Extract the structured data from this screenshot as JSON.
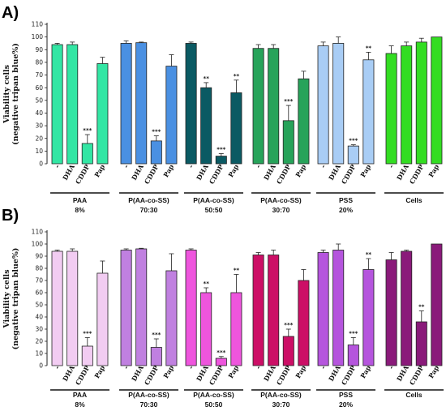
{
  "chart_data": [
    {
      "type": "bar",
      "panel_label": "A)",
      "ylabel": [
        "Viability cells",
        "(negative tripan blue%)"
      ],
      "ylim": [
        0,
        110
      ],
      "yticks": [
        "0",
        "10",
        "20",
        "30",
        "40",
        "50",
        "60",
        "70",
        "80",
        "90",
        "100",
        "110"
      ],
      "bar_labels": [
        "-",
        "DHA",
        "CDDP",
        "Pap"
      ],
      "groups": [
        {
          "label": [
            "PAA",
            "8%"
          ],
          "color": "#33e6a4",
          "values": [
            94,
            94,
            16,
            79
          ],
          "errors": [
            1,
            2,
            7,
            5
          ],
          "sig": [
            "",
            "",
            "***",
            ""
          ]
        },
        {
          "label": [
            "P(AA-co-SS)",
            "70:30"
          ],
          "color": "#4a90e2",
          "values": [
            95,
            95.5,
            18,
            77
          ],
          "errors": [
            2,
            0.5,
            4,
            9
          ],
          "sig": [
            "",
            "",
            "***",
            ""
          ]
        },
        {
          "label": [
            "P(AA-co-SS)",
            "50:50"
          ],
          "color": "#0b5a63",
          "values": [
            95,
            60,
            6,
            56
          ],
          "errors": [
            1,
            4,
            2,
            10
          ],
          "sig": [
            "",
            "**",
            "***",
            "**"
          ]
        },
        {
          "label": [
            "P(AA-co-SS)",
            "30:70"
          ],
          "color": "#27a35a",
          "values": [
            91,
            91,
            34,
            67
          ],
          "errors": [
            3,
            3,
            12,
            6
          ],
          "sig": [
            "",
            "",
            "***",
            ""
          ]
        },
        {
          "label": [
            "PSS",
            "20%"
          ],
          "color": "#a9cdf5",
          "values": [
            93,
            95,
            14,
            82
          ],
          "errors": [
            3,
            5,
            1,
            6
          ],
          "sig": [
            "",
            "",
            "***",
            "**"
          ]
        },
        {
          "label": [
            "Cells",
            ""
          ],
          "color": "#33dd22",
          "values": [
            87,
            93,
            96,
            100
          ],
          "errors": [
            6,
            3,
            3,
            0
          ],
          "sig": [
            "",
            "",
            "",
            ""
          ]
        }
      ]
    },
    {
      "type": "bar",
      "panel_label": "B)",
      "ylabel": [
        "Viability cells",
        "(negative tripan blue%)"
      ],
      "ylim": [
        0,
        110
      ],
      "yticks": [
        "0",
        "10",
        "20",
        "30",
        "40",
        "50",
        "60",
        "70",
        "80",
        "90",
        "100",
        "110"
      ],
      "bar_labels": [
        "-",
        "DHA",
        "CDDP",
        "Pap"
      ],
      "groups": [
        {
          "label": [
            "PAA",
            "8%"
          ],
          "color": "#f2ccf2",
          "values": [
            94,
            94,
            16,
            76
          ],
          "errors": [
            1,
            2,
            7,
            10
          ],
          "sig": [
            "",
            "",
            "***",
            ""
          ]
        },
        {
          "label": [
            "P(AA-co-SS)",
            "70:30"
          ],
          "color": "#c080e0",
          "values": [
            95,
            96,
            15,
            78
          ],
          "errors": [
            1,
            0.5,
            7,
            14
          ],
          "sig": [
            "",
            "",
            "***",
            ""
          ]
        },
        {
          "label": [
            "P(AA-co-SS)",
            "50:50"
          ],
          "color": "#ee55dd",
          "values": [
            95,
            60,
            6,
            60
          ],
          "errors": [
            1,
            4,
            1.5,
            15
          ],
          "sig": [
            "",
            "**",
            "***",
            "**"
          ]
        },
        {
          "label": [
            "P(AA-co-SS)",
            "30:70"
          ],
          "color": "#cc0f66",
          "values": [
            91,
            91,
            24,
            70
          ],
          "errors": [
            2,
            4,
            6,
            9
          ],
          "sig": [
            "",
            "",
            "***",
            ""
          ]
        },
        {
          "label": [
            "PSS",
            "20%"
          ],
          "color": "#b555dd",
          "values": [
            93,
            95,
            17,
            79
          ],
          "errors": [
            2,
            5,
            6,
            9
          ],
          "sig": [
            "",
            "",
            "***",
            "**"
          ]
        },
        {
          "label": [
            "Cells",
            ""
          ],
          "color": "#8a1a7a",
          "values": [
            87,
            94,
            36,
            100
          ],
          "errors": [
            6,
            1,
            9,
            0
          ],
          "sig": [
            "",
            "",
            "**",
            ""
          ]
        }
      ]
    }
  ]
}
